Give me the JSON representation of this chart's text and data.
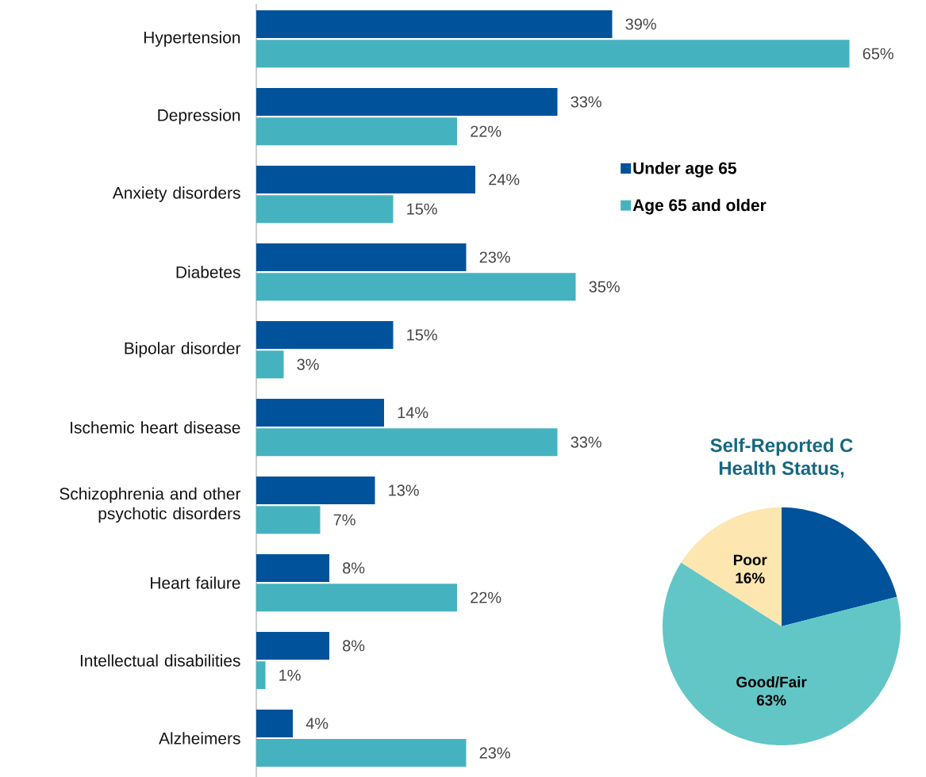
{
  "chart_data": [
    {
      "type": "bar",
      "orientation": "horizontal",
      "categories": [
        "Hypertension",
        "Depression",
        "Anxiety disorders",
        "Diabetes",
        "Bipolar disorder",
        "Ischemic heart disease",
        "Schizophrenia and other psychotic disorders",
        "Heart failure",
        "Intellectual disabilities",
        "Alzheimers"
      ],
      "tick_labels": "y",
      "legend": "top right",
      "series": [
        {
          "name": "Under age 65",
          "color": "#00529b",
          "values": [
            39,
            33,
            24,
            23,
            15,
            14,
            13,
            8,
            8,
            4
          ],
          "value_labels": [
            "39%",
            "33%",
            "24%",
            "23%",
            "15%",
            "14%",
            "13%",
            "8%",
            "8%",
            "4%"
          ]
        },
        {
          "name": "Age 65 and older",
          "color": "#45b3bf",
          "values": [
            65,
            22,
            15,
            35,
            3,
            33,
            7,
            22,
            1,
            23
          ],
          "value_labels": [
            "65%",
            "22%",
            "15%",
            "35%",
            "3%",
            "33%",
            "7%",
            "22%",
            "1%",
            "23%"
          ]
        }
      ]
    },
    {
      "type": "pie",
      "title": "Self-Reported C",
      "subtitle": "Health Status,",
      "categories": [
        null,
        "Good/Fair",
        "Poor"
      ],
      "values": [
        21,
        63,
        16
      ],
      "colors": [
        "#00529b",
        "#62c6c6",
        "#fde6b0"
      ],
      "value_labels": [
        null,
        "63%",
        "16%"
      ]
    }
  ]
}
